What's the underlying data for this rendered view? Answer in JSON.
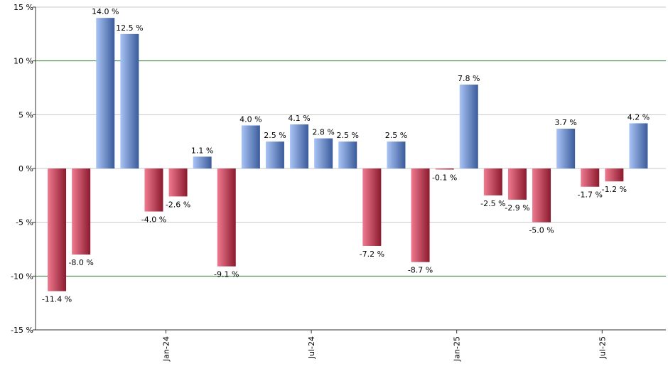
{
  "chart_data": {
    "type": "bar",
    "title": "",
    "xlabel": "",
    "ylabel": "",
    "ylim": [
      -15,
      15
    ],
    "y_ticks": [
      15,
      10,
      5,
      0,
      -5,
      -10,
      -15
    ],
    "y_tick_labels": [
      "15 %",
      "10 %",
      "5 %",
      "0 %",
      "-5 %",
      "-10 %",
      "-15 %"
    ],
    "gridlines_green_at": [
      10,
      -10
    ],
    "grid": true,
    "legend": "none",
    "x_tick_labels": [
      {
        "label": "Jan-24",
        "after_bar_index": 4
      },
      {
        "label": "Jul-24",
        "after_bar_index": 10
      },
      {
        "label": "Jan-25",
        "after_bar_index": 16
      },
      {
        "label": "Jul-25",
        "after_bar_index": 22
      }
    ],
    "values": [
      -11.4,
      -8.0,
      14.0,
      12.5,
      -4.0,
      -2.6,
      1.1,
      -9.1,
      4.0,
      2.5,
      4.1,
      2.8,
      2.5,
      -7.2,
      2.5,
      -8.7,
      -0.1,
      7.8,
      -2.5,
      -2.9,
      -5.0,
      3.7,
      -1.7,
      -1.2,
      4.2
    ],
    "data_labels": [
      "-11.4 %",
      "-8.0 %",
      "14.0 %",
      "12.5 %",
      "-4.0 %",
      "-2.6 %",
      "1.1 %",
      "-9.1 %",
      "4.0 %",
      "2.5 %",
      "4.1 %",
      "2.8 %",
      "2.5 %",
      "-7.2 %",
      "2.5 %",
      "-8.7 %",
      "-0.1 %",
      "7.8 %",
      "-2.5 %",
      "-2.9 %",
      "-5.0 %",
      "3.7 %",
      "-1.7 %",
      "-1.2 %",
      "4.2 %"
    ],
    "colors": {
      "positive_light": "#a9c4f5",
      "positive_dark": "#3a5a9a",
      "negative_light": "#f07a90",
      "negative_dark": "#8a1a2e",
      "gridline": "#c8c8c8",
      "accent_gridline": "#2e7d32",
      "axis": "#333333"
    }
  }
}
